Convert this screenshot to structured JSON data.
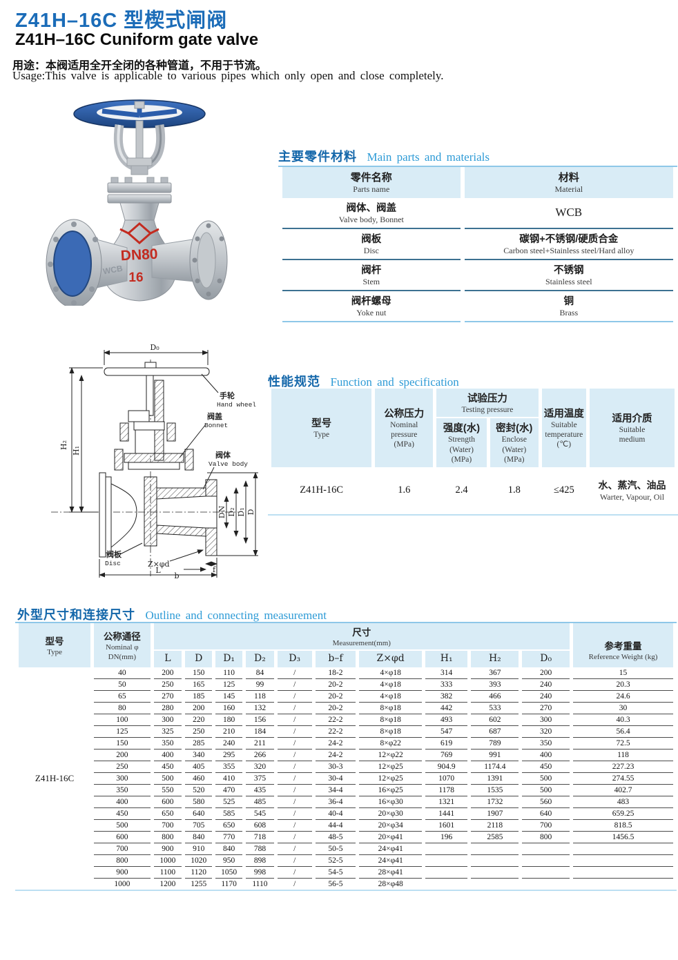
{
  "colors": {
    "title_blue": "#1b6cb8",
    "section_blue": "#1467aa",
    "section_light_blue": "#2e9bd6",
    "header_bg": "#d9ecf6",
    "rule_blue": "#8ec7e8",
    "marking_red": "#c32b20",
    "wheel_blue": "#2b5dab"
  },
  "header": {
    "title_cn": "Z41H–16C 型楔式闸阀",
    "title_en": "Z41H–16C Cuniform gate valve",
    "usage_cn": "用途：本阀适用全开全闭的各种管道，不用于节流。",
    "usage_en": "Usage:This valve is applicable to various pipes which only open and close completely."
  },
  "photo": {
    "dn_marking": "DN80",
    "pn_marking": "16",
    "cast_marking": "WCB"
  },
  "materials": {
    "title_cn": "主要零件材料",
    "title_en": "Main parts and materials",
    "col_part_cn": "零件名称",
    "col_part_en": "Parts name",
    "col_mat_cn": "材料",
    "col_mat_en": "Material",
    "rows": [
      {
        "part_cn": "阀体、阀盖",
        "part_en": "Valve body, Bonnet",
        "mat_cn": "WCB",
        "mat_en": ""
      },
      {
        "part_cn": "阀板",
        "part_en": "Disc",
        "mat_cn": "碳钢+不锈钢/硬质合金",
        "mat_en": "Carbon steel+Stainless steel/Hard alloy"
      },
      {
        "part_cn": "阀杆",
        "part_en": "Stem",
        "mat_cn": "不锈钢",
        "mat_en": "Stainless steel"
      },
      {
        "part_cn": "阀杆螺母",
        "part_en": "Yoke nut",
        "mat_cn": "铜",
        "mat_en": "Brass"
      }
    ]
  },
  "drawing": {
    "handwheel_cn": "手轮",
    "handwheel_en": "Hand wheel",
    "bonnet_cn": "阀盖",
    "bonnet_en": "Bonnet",
    "body_cn": "阀体",
    "body_en": "Valve body",
    "disc_cn": "阀板",
    "disc_en": "Disc",
    "dim_d0": "D₀",
    "dim_h1": "H₁",
    "dim_h2": "H₂",
    "dim_l": "L",
    "dim_b": "b",
    "dim_f": "f",
    "dim_zphid": "Z×φd",
    "dim_dn": "DN",
    "dim_d2": "D₂",
    "dim_d1": "D₁",
    "dim_d": "D"
  },
  "spec": {
    "title_cn": "性能规范",
    "title_en": "Function and specification",
    "col_type_cn": "型号",
    "col_type_en": "Type",
    "col_nominal_cn": "公称压力",
    "col_nominal_en": "Nominal\npressure\n(MPa)",
    "group_testing_cn": "试验压力",
    "group_testing_en": "Testing pressure",
    "col_strength_cn": "强度(水)",
    "col_strength_en": "Strength\n(Water)\n(MPa)",
    "col_enclose_cn": "密封(水)",
    "col_enclose_en": "Enclose\n(Water)\n(MPa)",
    "col_temp_cn": "适用温度",
    "col_temp_en": "Suitable\ntemperature\n(℃)",
    "col_medium_cn": "适用介质",
    "col_medium_en": "Suitable\nmedium",
    "row": {
      "type": "Z41H-16C",
      "nominal": "1.6",
      "strength": "2.4",
      "enclose": "1.8",
      "temp": "≤425",
      "medium_cn": "水、蒸汽、油品",
      "medium_en": "Warter, Vapour, Oil"
    }
  },
  "outline": {
    "title_cn": "外型尺寸和连接尺寸",
    "title_en": "Outline and connecting measurement",
    "col_type_cn": "型号",
    "col_type_en": "Type",
    "col_dn_cn": "公称通径",
    "col_dn_en": "Nominal φ\nDN(mm)",
    "group_meas_cn": "尺寸",
    "group_meas_en": "Measurement(mm)",
    "col_weight_cn": "参考重量",
    "col_weight_en": "Reference   Weight (kg)",
    "type_label": "Z41H-16C",
    "columns": [
      "L",
      "D",
      "D₁",
      "D₂",
      "D₃",
      "b–f",
      "Z×φd",
      "H₁",
      "H₂",
      "D₀"
    ],
    "rows": [
      [
        "40",
        "200",
        "150",
        "110",
        "84",
        "/",
        "18-2",
        "4×φ18",
        "314",
        "367",
        "200",
        "15"
      ],
      [
        "50",
        "250",
        "165",
        "125",
        "99",
        "/",
        "20-2",
        "4×φ18",
        "333",
        "393",
        "240",
        "20.3"
      ],
      [
        "65",
        "270",
        "185",
        "145",
        "118",
        "/",
        "20-2",
        "4×φ18",
        "382",
        "466",
        "240",
        "24.6"
      ],
      [
        "80",
        "280",
        "200",
        "160",
        "132",
        "/",
        "20-2",
        "8×φ18",
        "442",
        "533",
        "270",
        "30"
      ],
      [
        "100",
        "300",
        "220",
        "180",
        "156",
        "/",
        "22-2",
        "8×φ18",
        "493",
        "602",
        "300",
        "40.3"
      ],
      [
        "125",
        "325",
        "250",
        "210",
        "184",
        "/",
        "22-2",
        "8×φ18",
        "547",
        "687",
        "320",
        "56.4"
      ],
      [
        "150",
        "350",
        "285",
        "240",
        "211",
        "/",
        "24-2",
        "8×φ22",
        "619",
        "789",
        "350",
        "72.5"
      ],
      [
        "200",
        "400",
        "340",
        "295",
        "266",
        "/",
        "24-2",
        "12×φ22",
        "769",
        "991",
        "400",
        "118"
      ],
      [
        "250",
        "450",
        "405",
        "355",
        "320",
        "/",
        "30-3",
        "12×φ25",
        "904.9",
        "1174.4",
        "450",
        "227.23"
      ],
      [
        "300",
        "500",
        "460",
        "410",
        "375",
        "/",
        "30-4",
        "12×φ25",
        "1070",
        "1391",
        "500",
        "274.55"
      ],
      [
        "350",
        "550",
        "520",
        "470",
        "435",
        "/",
        "34-4",
        "16×φ25",
        "1178",
        "1535",
        "500",
        "402.7"
      ],
      [
        "400",
        "600",
        "580",
        "525",
        "485",
        "/",
        "36-4",
        "16×φ30",
        "1321",
        "1732",
        "560",
        "483"
      ],
      [
        "450",
        "650",
        "640",
        "585",
        "545",
        "/",
        "40-4",
        "20×φ30",
        "1441",
        "1907",
        "640",
        "659.25"
      ],
      [
        "500",
        "700",
        "705",
        "650",
        "608",
        "/",
        "44-4",
        "20×φ34",
        "1601",
        "2118",
        "700",
        "818.5"
      ],
      [
        "600",
        "800",
        "840",
        "770",
        "718",
        "/",
        "48-5",
        "20×φ41",
        "196",
        "2585",
        "800",
        "1456.5"
      ],
      [
        "700",
        "900",
        "910",
        "840",
        "788",
        "/",
        "50-5",
        "24×φ41",
        "",
        "",
        "",
        ""
      ],
      [
        "800",
        "1000",
        "1020",
        "950",
        "898",
        "/",
        "52-5",
        "24×φ41",
        "",
        "",
        "",
        ""
      ],
      [
        "900",
        "1100",
        "1120",
        "1050",
        "998",
        "/",
        "54-5",
        "28×φ41",
        "",
        "",
        "",
        ""
      ],
      [
        "1000",
        "1200",
        "1255",
        "1170",
        "1110",
        "/",
        "56-5",
        "28×φ48",
        "",
        "",
        "",
        ""
      ]
    ]
  }
}
